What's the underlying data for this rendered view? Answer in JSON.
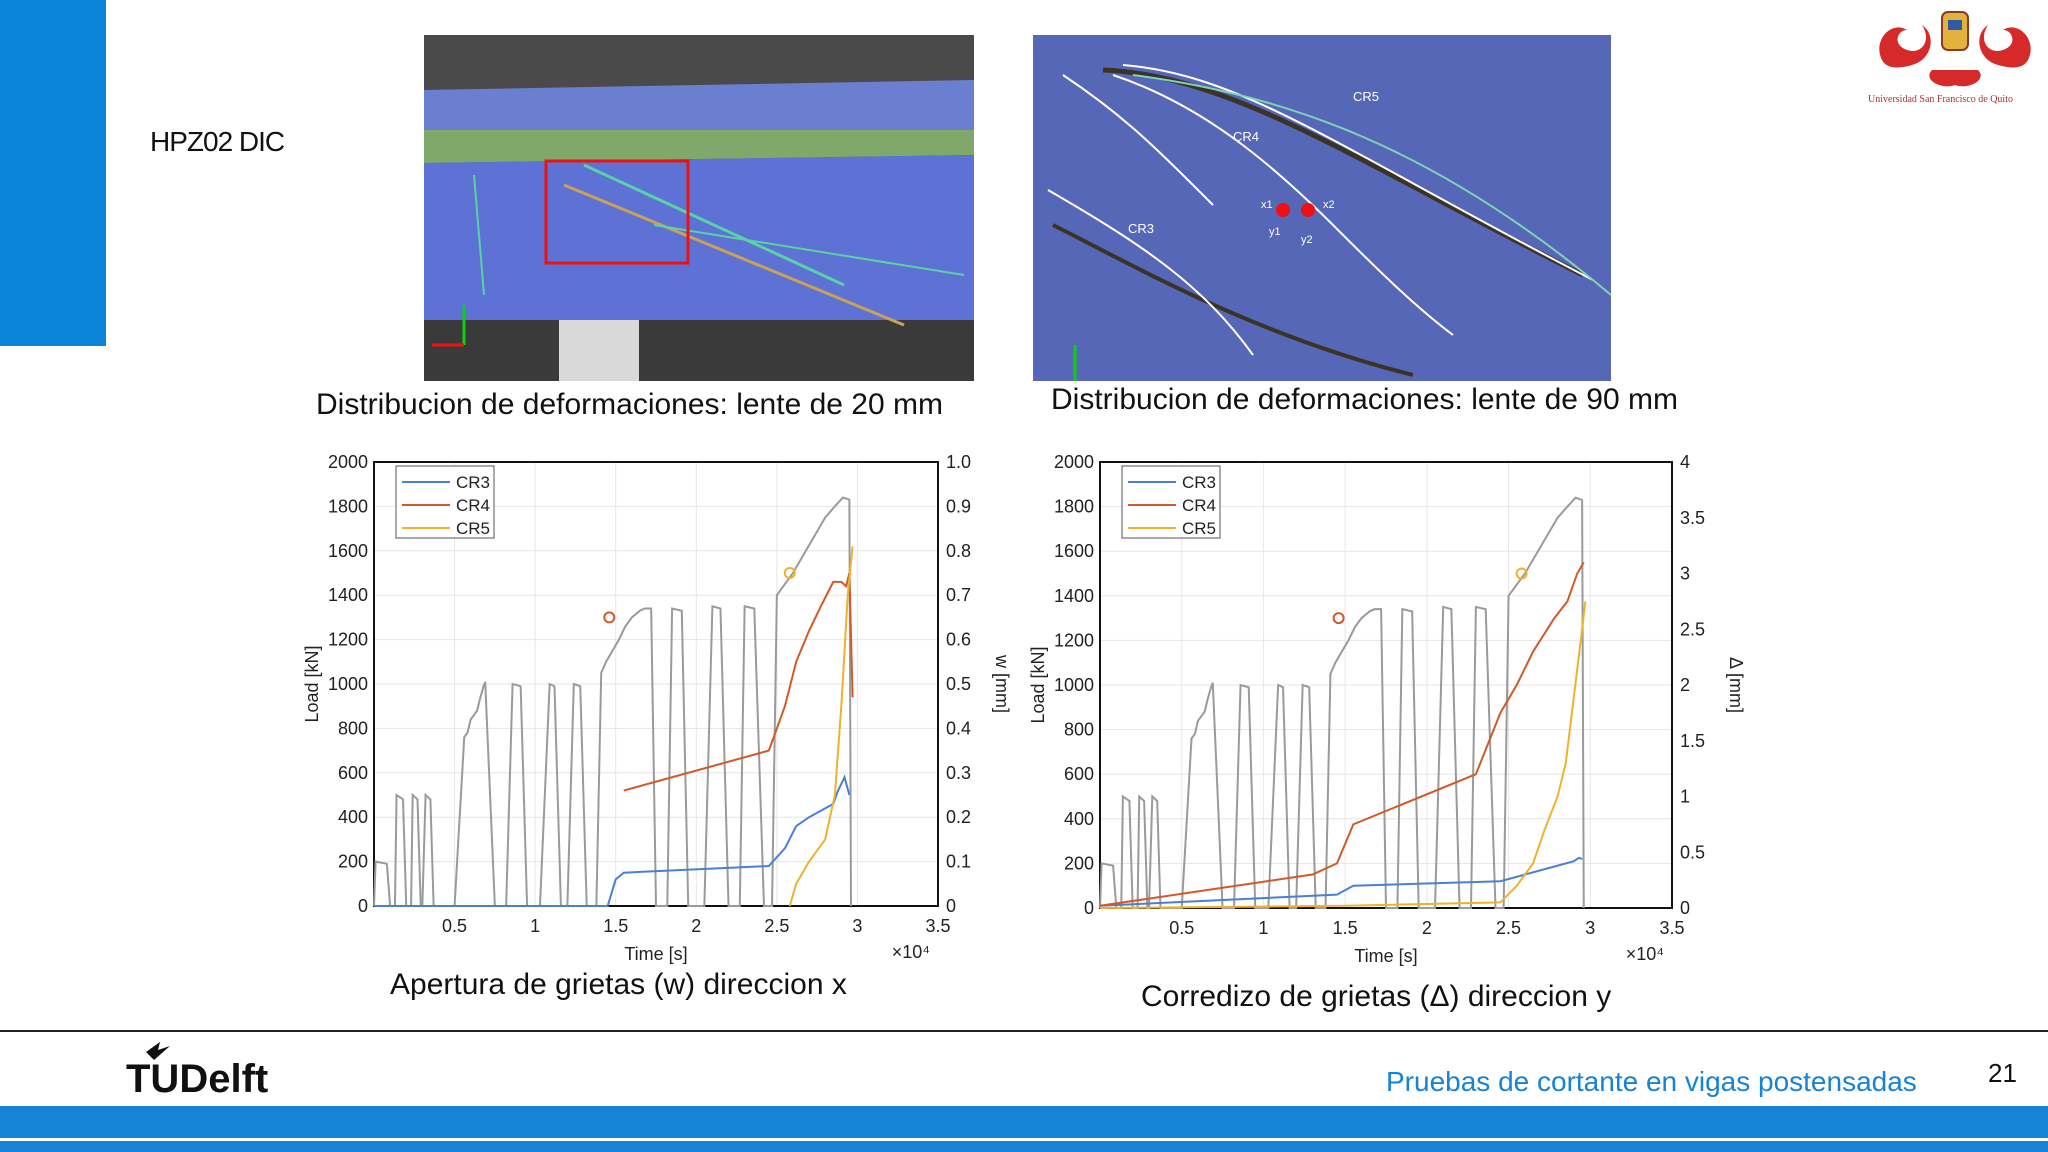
{
  "slide": {
    "title": "HPZ02 DIC",
    "page_number": "21",
    "footer_title": "Pruebas de cortante en vigas postensadas",
    "footer_logo_text": "TUDelft",
    "university_logo_text": "Universidad San Francisco de Quito",
    "accent_color": "#0a84d8"
  },
  "photos": [
    {
      "caption": "Distribucion de deformaciones: lente de 20 mm"
    },
    {
      "caption": "Distribucion de deformaciones: lente de 90 mm",
      "crack_labels": [
        "CR5",
        "CR4",
        "CR3"
      ],
      "marker_labels": [
        "x1",
        "x2",
        "y1",
        "y2"
      ]
    }
  ],
  "chart_data": [
    {
      "type": "line",
      "caption": "Apertura de grietas (w) direccion x",
      "xlabel": "Time [s]",
      "x_multiplier": "×10⁴",
      "ylabel_left": "Load [kN]",
      "ylabel_right": "w [mm]",
      "xlim": [
        0,
        3.5
      ],
      "xticks": [
        "0.5",
        "1",
        "1.5",
        "2",
        "2.5",
        "3",
        "3.5"
      ],
      "ylim_left": [
        0,
        2000
      ],
      "yticks_left": [
        "0",
        "200",
        "400",
        "600",
        "800",
        "1000",
        "1200",
        "1400",
        "1600",
        "1800",
        "2000"
      ],
      "ylim_right": [
        0,
        1.0
      ],
      "yticks_right": [
        "0",
        "0.1",
        "0.2",
        "0.3",
        "0.4",
        "0.5",
        "0.6",
        "0.7",
        "0.8",
        "0.9",
        "1.0"
      ],
      "legend": [
        "CR3",
        "CR4",
        "CR5"
      ],
      "colors": {
        "load": "#9a9a9a",
        "CR3": "#4a7fd6",
        "CR4": "#d1592a",
        "CR5": "#f0b22c"
      },
      "load_series": [
        [
          0,
          0
        ],
        [
          0.01,
          200
        ],
        [
          0.08,
          190
        ],
        [
          0.1,
          0
        ],
        [
          0.13,
          0
        ],
        [
          0.14,
          500
        ],
        [
          0.18,
          480
        ],
        [
          0.2,
          0
        ],
        [
          0.23,
          0
        ],
        [
          0.24,
          500
        ],
        [
          0.27,
          480
        ],
        [
          0.29,
          0
        ],
        [
          0.3,
          0
        ],
        [
          0.32,
          500
        ],
        [
          0.35,
          480
        ],
        [
          0.37,
          0
        ],
        [
          0.5,
          0
        ],
        [
          0.56,
          760
        ],
        [
          0.58,
          780
        ],
        [
          0.6,
          840
        ],
        [
          0.64,
          880
        ],
        [
          0.66,
          940
        ],
        [
          0.68,
          990
        ],
        [
          0.69,
          1010
        ],
        [
          0.75,
          0
        ],
        [
          0.82,
          0
        ],
        [
          0.86,
          1000
        ],
        [
          0.91,
          990
        ],
        [
          0.95,
          0
        ],
        [
          1.03,
          0
        ],
        [
          1.09,
          1000
        ],
        [
          1.12,
          990
        ],
        [
          1.16,
          0
        ],
        [
          1.2,
          0
        ],
        [
          1.24,
          1000
        ],
        [
          1.28,
          990
        ],
        [
          1.32,
          0
        ],
        [
          1.38,
          0
        ],
        [
          1.41,
          1050
        ],
        [
          1.44,
          1100
        ],
        [
          1.48,
          1150
        ],
        [
          1.52,
          1200
        ],
        [
          1.56,
          1260
        ],
        [
          1.6,
          1300
        ],
        [
          1.65,
          1330
        ],
        [
          1.68,
          1340
        ],
        [
          1.72,
          1340
        ],
        [
          1.75,
          0
        ],
        [
          1.82,
          0
        ],
        [
          1.85,
          1340
        ],
        [
          1.91,
          1330
        ],
        [
          1.95,
          0
        ],
        [
          2.05,
          0
        ],
        [
          2.1,
          1350
        ],
        [
          2.15,
          1340
        ],
        [
          2.2,
          0
        ],
        [
          2.27,
          0
        ],
        [
          2.3,
          1350
        ],
        [
          2.36,
          1340
        ],
        [
          2.42,
          0
        ],
        [
          2.47,
          0
        ],
        [
          2.5,
          1400
        ],
        [
          2.55,
          1450
        ],
        [
          2.6,
          1500
        ],
        [
          2.64,
          1550
        ],
        [
          2.68,
          1600
        ],
        [
          2.72,
          1650
        ],
        [
          2.76,
          1700
        ],
        [
          2.8,
          1750
        ],
        [
          2.86,
          1800
        ],
        [
          2.91,
          1840
        ],
        [
          2.95,
          1830
        ],
        [
          2.96,
          0
        ]
      ],
      "series": [
        {
          "name": "CR3",
          "points": [
            [
              0,
              0
            ],
            [
              1.45,
              0
            ],
            [
              1.5,
              0.06
            ],
            [
              1.55,
              0.075
            ],
            [
              2.45,
              0.09
            ],
            [
              2.55,
              0.13
            ],
            [
              2.62,
              0.18
            ],
            [
              2.7,
              0.2
            ],
            [
              2.85,
              0.23
            ],
            [
              2.88,
              0.26
            ],
            [
              2.92,
              0.29
            ],
            [
              2.95,
              0.25
            ]
          ]
        },
        {
          "name": "CR4",
          "points": [
            [
              1.55,
              0.26
            ],
            [
              2.45,
              0.35
            ],
            [
              2.55,
              0.45
            ],
            [
              2.62,
              0.55
            ],
            [
              2.7,
              0.62
            ],
            [
              2.78,
              0.68
            ],
            [
              2.85,
              0.73
            ],
            [
              2.9,
              0.73
            ],
            [
              2.93,
              0.72
            ],
            [
              2.95,
              0.75
            ],
            [
              2.97,
              0.47
            ]
          ]
        },
        {
          "name": "CR5",
          "points": [
            [
              2.58,
              0
            ],
            [
              2.62,
              0.05
            ],
            [
              2.7,
              0.1
            ],
            [
              2.8,
              0.15
            ],
            [
              2.86,
              0.25
            ],
            [
              2.9,
              0.45
            ],
            [
              2.94,
              0.7
            ],
            [
              2.97,
              0.81
            ]
          ]
        }
      ],
      "markers": [
        {
          "series": "CR4",
          "x": 1.46,
          "y": 1300
        },
        {
          "series": "CR5",
          "x": 2.58,
          "y": 1500
        }
      ]
    },
    {
      "type": "line",
      "caption": "Corredizo de grietas (Δ) direccion y",
      "xlabel": "Time [s]",
      "x_multiplier": "×10⁴",
      "ylabel_left": "Load [kN]",
      "ylabel_right": "Δ [mm]",
      "xlim": [
        0,
        3.5
      ],
      "xticks": [
        "0.5",
        "1",
        "1.5",
        "2",
        "2.5",
        "3",
        "3.5"
      ],
      "ylim_left": [
        0,
        2000
      ],
      "yticks_left": [
        "0",
        "200",
        "400",
        "600",
        "800",
        "1000",
        "1200",
        "1400",
        "1600",
        "1800",
        "2000"
      ],
      "ylim_right": [
        0,
        4
      ],
      "yticks_right": [
        "0",
        "0.5",
        "1",
        "1.5",
        "2",
        "2.5",
        "3",
        "3.5",
        "4"
      ],
      "legend": [
        "CR3",
        "CR4",
        "CR5"
      ],
      "colors": {
        "load": "#9a9a9a",
        "CR3": "#4a7fd6",
        "CR4": "#d1592a",
        "CR5": "#f0b22c"
      },
      "load_series": [
        [
          0,
          0
        ],
        [
          0.01,
          200
        ],
        [
          0.08,
          190
        ],
        [
          0.1,
          0
        ],
        [
          0.13,
          0
        ],
        [
          0.14,
          500
        ],
        [
          0.18,
          480
        ],
        [
          0.2,
          0
        ],
        [
          0.23,
          0
        ],
        [
          0.24,
          500
        ],
        [
          0.27,
          480
        ],
        [
          0.29,
          0
        ],
        [
          0.3,
          0
        ],
        [
          0.32,
          500
        ],
        [
          0.35,
          480
        ],
        [
          0.37,
          0
        ],
        [
          0.5,
          0
        ],
        [
          0.56,
          760
        ],
        [
          0.58,
          780
        ],
        [
          0.6,
          840
        ],
        [
          0.64,
          880
        ],
        [
          0.66,
          940
        ],
        [
          0.68,
          990
        ],
        [
          0.69,
          1010
        ],
        [
          0.75,
          0
        ],
        [
          0.82,
          0
        ],
        [
          0.86,
          1000
        ],
        [
          0.91,
          990
        ],
        [
          0.95,
          0
        ],
        [
          1.03,
          0
        ],
        [
          1.09,
          1000
        ],
        [
          1.12,
          990
        ],
        [
          1.16,
          0
        ],
        [
          1.2,
          0
        ],
        [
          1.24,
          1000
        ],
        [
          1.28,
          990
        ],
        [
          1.32,
          0
        ],
        [
          1.38,
          0
        ],
        [
          1.41,
          1050
        ],
        [
          1.44,
          1100
        ],
        [
          1.48,
          1150
        ],
        [
          1.52,
          1200
        ],
        [
          1.56,
          1260
        ],
        [
          1.6,
          1300
        ],
        [
          1.65,
          1330
        ],
        [
          1.68,
          1340
        ],
        [
          1.72,
          1340
        ],
        [
          1.75,
          0
        ],
        [
          1.82,
          0
        ],
        [
          1.85,
          1340
        ],
        [
          1.91,
          1330
        ],
        [
          1.95,
          0
        ],
        [
          2.05,
          0
        ],
        [
          2.1,
          1350
        ],
        [
          2.15,
          1340
        ],
        [
          2.2,
          0
        ],
        [
          2.27,
          0
        ],
        [
          2.3,
          1350
        ],
        [
          2.36,
          1340
        ],
        [
          2.42,
          0
        ],
        [
          2.47,
          0
        ],
        [
          2.5,
          1400
        ],
        [
          2.55,
          1450
        ],
        [
          2.6,
          1500
        ],
        [
          2.64,
          1550
        ],
        [
          2.68,
          1600
        ],
        [
          2.72,
          1650
        ],
        [
          2.76,
          1700
        ],
        [
          2.8,
          1750
        ],
        [
          2.86,
          1800
        ],
        [
          2.91,
          1840
        ],
        [
          2.95,
          1830
        ],
        [
          2.96,
          0
        ]
      ],
      "series": [
        {
          "name": "CR3",
          "points": [
            [
              0,
              0.02
            ],
            [
              1.45,
              0.12
            ],
            [
              1.55,
              0.2
            ],
            [
              2.45,
              0.24
            ],
            [
              2.6,
              0.3
            ],
            [
              2.75,
              0.36
            ],
            [
              2.9,
              0.42
            ],
            [
              2.93,
              0.45
            ],
            [
              2.95,
              0.44
            ]
          ]
        },
        {
          "name": "CR4",
          "points": [
            [
              0,
              0.02
            ],
            [
              1.3,
              0.3
            ],
            [
              1.45,
              0.4
            ],
            [
              1.55,
              0.75
            ],
            [
              2.3,
              1.2
            ],
            [
              2.45,
              1.75
            ],
            [
              2.55,
              2.0
            ],
            [
              2.65,
              2.3
            ],
            [
              2.78,
              2.6
            ],
            [
              2.86,
              2.75
            ],
            [
              2.92,
              3.0
            ],
            [
              2.96,
              3.1
            ]
          ]
        },
        {
          "name": "CR5",
          "points": [
            [
              0,
              0
            ],
            [
              1.5,
              0.02
            ],
            [
              2.45,
              0.05
            ],
            [
              2.55,
              0.2
            ],
            [
              2.65,
              0.4
            ],
            [
              2.72,
              0.7
            ],
            [
              2.8,
              1.0
            ],
            [
              2.85,
              1.3
            ],
            [
              2.9,
              1.9
            ],
            [
              2.95,
              2.5
            ],
            [
              2.97,
              2.75
            ]
          ]
        }
      ],
      "markers": [
        {
          "series": "CR4",
          "x": 1.46,
          "y": 1300
        },
        {
          "series": "CR5",
          "x": 2.58,
          "y": 1500
        }
      ]
    }
  ]
}
